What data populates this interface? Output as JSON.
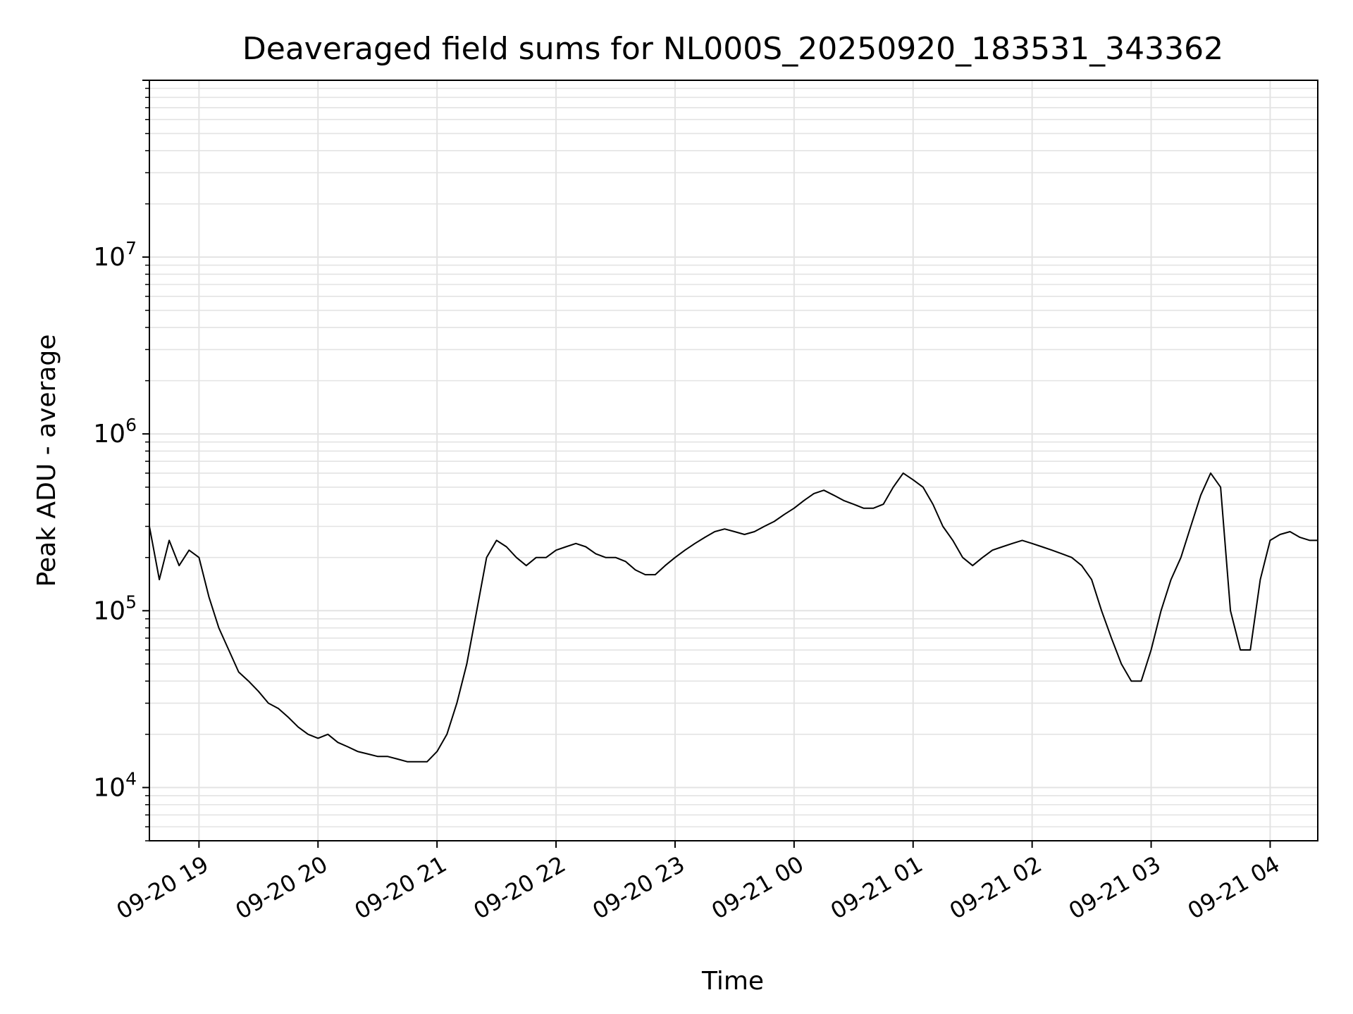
{
  "chart_data": {
    "type": "line",
    "title": "Deaveraged field sums for NL000S_20250920_183531_343362",
    "xlabel": "Time",
    "ylabel": "Peak ADU - average",
    "xlim": [
      "2025-09-20 18:35",
      "2025-09-21 04:24"
    ],
    "ylim": [
      5000,
      100000000
    ],
    "yscale": "log",
    "grid": true,
    "legend": "none",
    "x_ticks": [
      {
        "value": "2025-09-20 19:00",
        "label": "09-20 19"
      },
      {
        "value": "2025-09-20 20:00",
        "label": "09-20 20"
      },
      {
        "value": "2025-09-20 21:00",
        "label": "09-20 21"
      },
      {
        "value": "2025-09-20 22:00",
        "label": "09-20 22"
      },
      {
        "value": "2025-09-20 23:00",
        "label": "09-20 23"
      },
      {
        "value": "2025-09-21 00:00",
        "label": "09-21 00"
      },
      {
        "value": "2025-09-21 01:00",
        "label": "09-21 01"
      },
      {
        "value": "2025-09-21 02:00",
        "label": "09-21 02"
      },
      {
        "value": "2025-09-21 03:00",
        "label": "09-21 03"
      },
      {
        "value": "2025-09-21 04:00",
        "label": "09-21 04"
      }
    ],
    "y_ticks": [
      {
        "value": 10000,
        "base": "10",
        "exp": "4"
      },
      {
        "value": 100000,
        "base": "10",
        "exp": "5"
      },
      {
        "value": 1000000,
        "base": "10",
        "exp": "6"
      },
      {
        "value": 10000000,
        "base": "10",
        "exp": "7"
      }
    ],
    "series": [
      {
        "color": "#000000",
        "points": [
          [
            "2025-09-20 18:35",
            300000
          ],
          [
            "2025-09-20 18:40",
            150000
          ],
          [
            "2025-09-20 18:45",
            250000
          ],
          [
            "2025-09-20 18:50",
            180000
          ],
          [
            "2025-09-20 18:55",
            220000
          ],
          [
            "2025-09-20 19:00",
            200000
          ],
          [
            "2025-09-20 19:05",
            120000
          ],
          [
            "2025-09-20 19:10",
            80000
          ],
          [
            "2025-09-20 19:15",
            60000
          ],
          [
            "2025-09-20 19:20",
            45000
          ],
          [
            "2025-09-20 19:25",
            40000
          ],
          [
            "2025-09-20 19:30",
            35000
          ],
          [
            "2025-09-20 19:35",
            30000
          ],
          [
            "2025-09-20 19:40",
            28000
          ],
          [
            "2025-09-20 19:45",
            25000
          ],
          [
            "2025-09-20 19:50",
            22000
          ],
          [
            "2025-09-20 19:55",
            20000
          ],
          [
            "2025-09-20 20:00",
            19000
          ],
          [
            "2025-09-20 20:05",
            20000
          ],
          [
            "2025-09-20 20:10",
            18000
          ],
          [
            "2025-09-20 20:15",
            17000
          ],
          [
            "2025-09-20 20:20",
            16000
          ],
          [
            "2025-09-20 20:25",
            15500
          ],
          [
            "2025-09-20 20:30",
            15000
          ],
          [
            "2025-09-20 20:35",
            15000
          ],
          [
            "2025-09-20 20:40",
            14500
          ],
          [
            "2025-09-20 20:45",
            14000
          ],
          [
            "2025-09-20 20:50",
            14000
          ],
          [
            "2025-09-20 20:55",
            14000
          ],
          [
            "2025-09-20 21:00",
            16000
          ],
          [
            "2025-09-20 21:05",
            20000
          ],
          [
            "2025-09-20 21:10",
            30000
          ],
          [
            "2025-09-20 21:15",
            50000
          ],
          [
            "2025-09-20 21:20",
            100000
          ],
          [
            "2025-09-20 21:25",
            200000
          ],
          [
            "2025-09-20 21:30",
            250000
          ],
          [
            "2025-09-20 21:35",
            230000
          ],
          [
            "2025-09-20 21:40",
            200000
          ],
          [
            "2025-09-20 21:45",
            180000
          ],
          [
            "2025-09-20 21:50",
            200000
          ],
          [
            "2025-09-20 21:55",
            200000
          ],
          [
            "2025-09-20 22:00",
            220000
          ],
          [
            "2025-09-20 22:05",
            230000
          ],
          [
            "2025-09-20 22:10",
            240000
          ],
          [
            "2025-09-20 22:15",
            230000
          ],
          [
            "2025-09-20 22:20",
            210000
          ],
          [
            "2025-09-20 22:25",
            200000
          ],
          [
            "2025-09-20 22:30",
            200000
          ],
          [
            "2025-09-20 22:35",
            190000
          ],
          [
            "2025-09-20 22:40",
            170000
          ],
          [
            "2025-09-20 22:45",
            160000
          ],
          [
            "2025-09-20 22:50",
            160000
          ],
          [
            "2025-09-20 22:55",
            180000
          ],
          [
            "2025-09-20 23:00",
            200000
          ],
          [
            "2025-09-20 23:05",
            220000
          ],
          [
            "2025-09-20 23:10",
            240000
          ],
          [
            "2025-09-20 23:15",
            260000
          ],
          [
            "2025-09-20 23:20",
            280000
          ],
          [
            "2025-09-20 23:25",
            290000
          ],
          [
            "2025-09-20 23:30",
            280000
          ],
          [
            "2025-09-20 23:35",
            270000
          ],
          [
            "2025-09-20 23:40",
            280000
          ],
          [
            "2025-09-20 23:45",
            300000
          ],
          [
            "2025-09-20 23:50",
            320000
          ],
          [
            "2025-09-20 23:55",
            350000
          ],
          [
            "2025-09-21 00:00",
            380000
          ],
          [
            "2025-09-21 00:05",
            420000
          ],
          [
            "2025-09-21 00:10",
            460000
          ],
          [
            "2025-09-21 00:15",
            480000
          ],
          [
            "2025-09-21 00:20",
            450000
          ],
          [
            "2025-09-21 00:25",
            420000
          ],
          [
            "2025-09-21 00:30",
            400000
          ],
          [
            "2025-09-21 00:35",
            380000
          ],
          [
            "2025-09-21 00:40",
            380000
          ],
          [
            "2025-09-21 00:45",
            400000
          ],
          [
            "2025-09-21 00:50",
            500000
          ],
          [
            "2025-09-21 00:55",
            600000
          ],
          [
            "2025-09-21 01:00",
            550000
          ],
          [
            "2025-09-21 01:05",
            500000
          ],
          [
            "2025-09-21 01:10",
            400000
          ],
          [
            "2025-09-21 01:15",
            300000
          ],
          [
            "2025-09-21 01:20",
            250000
          ],
          [
            "2025-09-21 01:25",
            200000
          ],
          [
            "2025-09-21 01:30",
            180000
          ],
          [
            "2025-09-21 01:35",
            200000
          ],
          [
            "2025-09-21 01:40",
            220000
          ],
          [
            "2025-09-21 01:45",
            230000
          ],
          [
            "2025-09-21 01:50",
            240000
          ],
          [
            "2025-09-21 01:55",
            250000
          ],
          [
            "2025-09-21 02:00",
            240000
          ],
          [
            "2025-09-21 02:05",
            230000
          ],
          [
            "2025-09-21 02:10",
            220000
          ],
          [
            "2025-09-21 02:15",
            210000
          ],
          [
            "2025-09-21 02:20",
            200000
          ],
          [
            "2025-09-21 02:25",
            180000
          ],
          [
            "2025-09-21 02:30",
            150000
          ],
          [
            "2025-09-21 02:35",
            100000
          ],
          [
            "2025-09-21 02:40",
            70000
          ],
          [
            "2025-09-21 02:45",
            50000
          ],
          [
            "2025-09-21 02:50",
            40000
          ],
          [
            "2025-09-21 02:55",
            40000
          ],
          [
            "2025-09-21 03:00",
            60000
          ],
          [
            "2025-09-21 03:05",
            100000
          ],
          [
            "2025-09-21 03:10",
            150000
          ],
          [
            "2025-09-21 03:15",
            200000
          ],
          [
            "2025-09-21 03:20",
            300000
          ],
          [
            "2025-09-21 03:25",
            450000
          ],
          [
            "2025-09-21 03:30",
            600000
          ],
          [
            "2025-09-21 03:35",
            500000
          ],
          [
            "2025-09-21 03:40",
            100000
          ],
          [
            "2025-09-21 03:45",
            60000
          ],
          [
            "2025-09-21 03:50",
            60000
          ],
          [
            "2025-09-21 03:55",
            150000
          ],
          [
            "2025-09-21 04:00",
            250000
          ],
          [
            "2025-09-21 04:05",
            270000
          ],
          [
            "2025-09-21 04:10",
            280000
          ],
          [
            "2025-09-21 04:15",
            260000
          ],
          [
            "2025-09-21 04:20",
            250000
          ],
          [
            "2025-09-21 04:24",
            250000
          ]
        ]
      }
    ]
  }
}
